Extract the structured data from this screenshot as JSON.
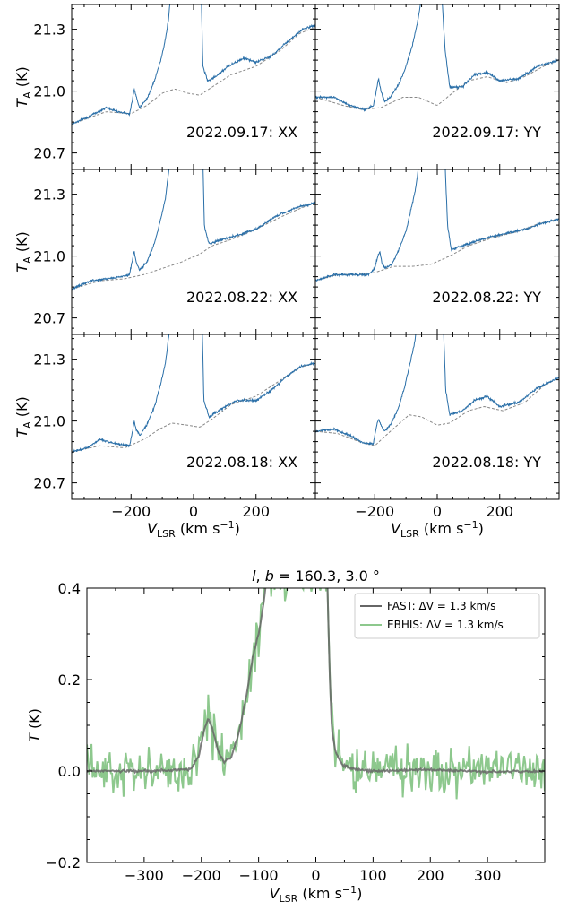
{
  "chart_data": [
    {
      "type": "line",
      "panel": "grid-2022.09.17-XX",
      "label": "2022.09.17: XX",
      "ylabel": "T_A (K)",
      "xlim": [
        -390,
        390
      ],
      "ylim": [
        20.62,
        21.42
      ],
      "yticks": [
        20.7,
        21.0,
        21.3
      ],
      "baseline": [
        [
          -390,
          20.84
        ],
        [
          -280,
          20.9
        ],
        [
          -200,
          20.89
        ],
        [
          -150,
          20.93
        ],
        [
          -100,
          20.99
        ],
        [
          -60,
          21.01
        ],
        [
          -20,
          20.99
        ],
        [
          20,
          20.98
        ],
        [
          60,
          21.02
        ],
        [
          120,
          21.08
        ],
        [
          200,
          21.12
        ],
        [
          280,
          21.2
        ],
        [
          340,
          21.28
        ],
        [
          390,
          21.31
        ]
      ],
      "spectrum": [
        [
          -390,
          20.84
        ],
        [
          -330,
          20.88
        ],
        [
          -280,
          20.92
        ],
        [
          -240,
          20.9
        ],
        [
          -205,
          20.89
        ],
        [
          -195,
          20.96
        ],
        [
          -190,
          21.01
        ],
        [
          -183,
          20.97
        ],
        [
          -172,
          20.92
        ],
        [
          -150,
          20.96
        ],
        [
          -125,
          21.05
        ],
        [
          -105,
          21.15
        ],
        [
          -90,
          21.25
        ],
        [
          -80,
          21.35
        ],
        [
          -74,
          21.45
        ],
        [
          25,
          21.45
        ],
        [
          30,
          21.12
        ],
        [
          45,
          21.05
        ],
        [
          70,
          21.07
        ],
        [
          110,
          21.12
        ],
        [
          160,
          21.16
        ],
        [
          200,
          21.14
        ],
        [
          250,
          21.17
        ],
        [
          300,
          21.24
        ],
        [
          350,
          21.3
        ],
        [
          390,
          21.32
        ]
      ]
    },
    {
      "type": "line",
      "panel": "grid-2022.09.17-YY",
      "label": "2022.09.17: YY",
      "xlim": [
        -390,
        390
      ],
      "ylim": [
        20.62,
        21.42
      ],
      "baseline": [
        [
          -390,
          20.97
        ],
        [
          -300,
          20.93
        ],
        [
          -240,
          20.91
        ],
        [
          -180,
          20.92
        ],
        [
          -110,
          20.97
        ],
        [
          -60,
          20.97
        ],
        [
          0,
          20.93
        ],
        [
          40,
          20.98
        ],
        [
          100,
          21.05
        ],
        [
          160,
          21.07
        ],
        [
          220,
          21.04
        ],
        [
          280,
          21.07
        ],
        [
          340,
          21.12
        ],
        [
          390,
          21.15
        ]
      ],
      "spectrum": [
        [
          -390,
          20.97
        ],
        [
          -330,
          20.97
        ],
        [
          -280,
          20.93
        ],
        [
          -230,
          20.91
        ],
        [
          -205,
          20.93
        ],
        [
          -195,
          21.0
        ],
        [
          -188,
          21.06
        ],
        [
          -180,
          21.0
        ],
        [
          -168,
          20.95
        ],
        [
          -150,
          20.97
        ],
        [
          -120,
          21.04
        ],
        [
          -100,
          21.12
        ],
        [
          -80,
          21.22
        ],
        [
          -65,
          21.32
        ],
        [
          -50,
          21.45
        ],
        [
          15,
          21.45
        ],
        [
          25,
          21.2
        ],
        [
          40,
          21.02
        ],
        [
          80,
          21.02
        ],
        [
          120,
          21.08
        ],
        [
          160,
          21.09
        ],
        [
          200,
          21.05
        ],
        [
          260,
          21.06
        ],
        [
          320,
          21.12
        ],
        [
          390,
          21.15
        ]
      ]
    },
    {
      "type": "line",
      "panel": "grid-2022.08.22-XX",
      "label": "2022.08.22: XX",
      "ylabel": "T_A (K)",
      "xlim": [
        -390,
        390
      ],
      "ylim": [
        20.62,
        21.42
      ],
      "yticks": [
        20.7,
        21.0,
        21.3
      ],
      "baseline": [
        [
          -390,
          20.84
        ],
        [
          -300,
          20.88
        ],
        [
          -220,
          20.89
        ],
        [
          -160,
          20.91
        ],
        [
          -100,
          20.94
        ],
        [
          -40,
          20.97
        ],
        [
          20,
          21.01
        ],
        [
          60,
          21.05
        ],
        [
          120,
          21.08
        ],
        [
          200,
          21.13
        ],
        [
          280,
          21.19
        ],
        [
          340,
          21.23
        ],
        [
          390,
          21.26
        ]
      ],
      "spectrum": [
        [
          -390,
          20.84
        ],
        [
          -330,
          20.88
        ],
        [
          -280,
          20.89
        ],
        [
          -230,
          20.9
        ],
        [
          -205,
          20.91
        ],
        [
          -196,
          20.98
        ],
        [
          -190,
          21.02
        ],
        [
          -183,
          20.97
        ],
        [
          -172,
          20.93
        ],
        [
          -150,
          20.97
        ],
        [
          -125,
          21.06
        ],
        [
          -105,
          21.18
        ],
        [
          -90,
          21.28
        ],
        [
          -82,
          21.38
        ],
        [
          -76,
          21.45
        ],
        [
          30,
          21.45
        ],
        [
          35,
          21.14
        ],
        [
          50,
          21.06
        ],
        [
          90,
          21.08
        ],
        [
          140,
          21.1
        ],
        [
          200,
          21.13
        ],
        [
          260,
          21.19
        ],
        [
          320,
          21.23
        ],
        [
          390,
          21.26
        ]
      ]
    },
    {
      "type": "line",
      "panel": "grid-2022.08.22-YY",
      "label": "2022.08.22: YY",
      "xlim": [
        -390,
        390
      ],
      "ylim": [
        20.62,
        21.42
      ],
      "baseline": [
        [
          -390,
          20.88
        ],
        [
          -320,
          20.91
        ],
        [
          -260,
          20.91
        ],
        [
          -200,
          20.92
        ],
        [
          -140,
          20.95
        ],
        [
          -80,
          20.95
        ],
        [
          -20,
          20.96
        ],
        [
          40,
          21.0
        ],
        [
          100,
          21.05
        ],
        [
          180,
          21.09
        ],
        [
          260,
          21.12
        ],
        [
          330,
          21.16
        ],
        [
          390,
          21.18
        ]
      ],
      "spectrum": [
        [
          -390,
          20.88
        ],
        [
          -330,
          20.91
        ],
        [
          -270,
          20.91
        ],
        [
          -220,
          20.91
        ],
        [
          -200,
          20.94
        ],
        [
          -190,
          21.0
        ],
        [
          -183,
          21.02
        ],
        [
          -176,
          20.96
        ],
        [
          -165,
          20.94
        ],
        [
          -145,
          20.96
        ],
        [
          -120,
          21.04
        ],
        [
          -100,
          21.12
        ],
        [
          -85,
          21.22
        ],
        [
          -70,
          21.32
        ],
        [
          -58,
          21.45
        ],
        [
          25,
          21.45
        ],
        [
          33,
          21.15
        ],
        [
          45,
          21.03
        ],
        [
          100,
          21.06
        ],
        [
          160,
          21.09
        ],
        [
          220,
          21.11
        ],
        [
          280,
          21.13
        ],
        [
          340,
          21.16
        ],
        [
          390,
          21.18
        ]
      ]
    },
    {
      "type": "line",
      "panel": "grid-2022.08.18-XX",
      "label": "2022.08.18: XX",
      "ylabel": "T_A (K)",
      "xlim": [
        -390,
        390
      ],
      "ylim": [
        20.62,
        21.42
      ],
      "yticks": [
        20.7,
        21.0,
        21.3
      ],
      "baseline": [
        [
          -390,
          20.85
        ],
        [
          -300,
          20.88
        ],
        [
          -220,
          20.87
        ],
        [
          -160,
          20.91
        ],
        [
          -110,
          20.96
        ],
        [
          -70,
          20.99
        ],
        [
          -20,
          20.98
        ],
        [
          20,
          20.97
        ],
        [
          60,
          21.01
        ],
        [
          120,
          21.08
        ],
        [
          200,
          21.12
        ],
        [
          280,
          21.2
        ],
        [
          340,
          21.26
        ],
        [
          390,
          21.28
        ]
      ],
      "spectrum": [
        [
          -390,
          20.85
        ],
        [
          -340,
          20.87
        ],
        [
          -300,
          20.91
        ],
        [
          -250,
          20.89
        ],
        [
          -205,
          20.88
        ],
        [
          -195,
          20.95
        ],
        [
          -190,
          21.0
        ],
        [
          -184,
          20.96
        ],
        [
          -172,
          20.93
        ],
        [
          -150,
          20.98
        ],
        [
          -125,
          21.07
        ],
        [
          -105,
          21.18
        ],
        [
          -90,
          21.28
        ],
        [
          -82,
          21.38
        ],
        [
          -76,
          21.45
        ],
        [
          28,
          21.45
        ],
        [
          33,
          21.1
        ],
        [
          50,
          21.02
        ],
        [
          90,
          21.06
        ],
        [
          140,
          21.1
        ],
        [
          200,
          21.1
        ],
        [
          250,
          21.15
        ],
        [
          300,
          21.22
        ],
        [
          350,
          21.27
        ],
        [
          390,
          21.28
        ]
      ]
    },
    {
      "type": "line",
      "panel": "grid-2022.08.18-YY",
      "label": "2022.08.18: YY",
      "xlim": [
        -390,
        390
      ],
      "ylim": [
        20.62,
        21.42
      ],
      "baseline": [
        [
          -390,
          20.95
        ],
        [
          -320,
          20.94
        ],
        [
          -250,
          20.9
        ],
        [
          -200,
          20.88
        ],
        [
          -150,
          20.95
        ],
        [
          -90,
          21.03
        ],
        [
          -50,
          21.02
        ],
        [
          0,
          20.98
        ],
        [
          40,
          20.99
        ],
        [
          100,
          21.05
        ],
        [
          150,
          21.07
        ],
        [
          210,
          21.05
        ],
        [
          280,
          21.09
        ],
        [
          340,
          21.17
        ],
        [
          390,
          21.21
        ]
      ],
      "spectrum": [
        [
          -390,
          20.95
        ],
        [
          -330,
          20.96
        ],
        [
          -280,
          20.93
        ],
        [
          -230,
          20.89
        ],
        [
          -205,
          20.89
        ],
        [
          -196,
          20.96
        ],
        [
          -188,
          21.01
        ],
        [
          -180,
          20.98
        ],
        [
          -168,
          20.95
        ],
        [
          -150,
          20.98
        ],
        [
          -125,
          21.06
        ],
        [
          -105,
          21.16
        ],
        [
          -90,
          21.26
        ],
        [
          -75,
          21.36
        ],
        [
          -65,
          21.45
        ],
        [
          20,
          21.45
        ],
        [
          27,
          21.15
        ],
        [
          40,
          21.03
        ],
        [
          80,
          21.05
        ],
        [
          120,
          21.1
        ],
        [
          160,
          21.12
        ],
        [
          200,
          21.07
        ],
        [
          260,
          21.09
        ],
        [
          320,
          21.16
        ],
        [
          390,
          21.21
        ]
      ]
    },
    {
      "type": "line",
      "panel": "comparison",
      "title": "l, b = 160.3, 3.0 °",
      "xlabel": "V_LSR (km s^-1)",
      "ylabel": "T (K)",
      "xlim": [
        -400,
        400
      ],
      "ylim": [
        -0.2,
        0.4
      ],
      "xticks": [
        -300,
        -200,
        -100,
        0,
        100,
        200,
        300
      ],
      "yticks": [
        -0.2,
        0.0,
        0.2,
        0.4
      ],
      "legend": "top-right",
      "series": [
        {
          "name": "FAST: ΔV = 1.3 km/s",
          "color": "#666666",
          "points": [
            [
              -400,
              0.0
            ],
            [
              -300,
              0.0
            ],
            [
              -220,
              0.003
            ],
            [
              -205,
              0.03
            ],
            [
              -195,
              0.09
            ],
            [
              -188,
              0.115
            ],
            [
              -180,
              0.09
            ],
            [
              -170,
              0.04
            ],
            [
              -160,
              0.02
            ],
            [
              -148,
              0.03
            ],
            [
              -135,
              0.08
            ],
            [
              -122,
              0.16
            ],
            [
              -110,
              0.25
            ],
            [
              -100,
              0.3
            ],
            [
              -92,
              0.36
            ],
            [
              -86,
              0.42
            ],
            [
              20,
              0.42
            ],
            [
              24,
              0.22
            ],
            [
              28,
              0.09
            ],
            [
              35,
              0.04
            ],
            [
              45,
              0.015
            ],
            [
              60,
              0.005
            ],
            [
              100,
              0.0
            ],
            [
              200,
              0.003
            ],
            [
              300,
              -0.002
            ],
            [
              400,
              0.0
            ]
          ]
        },
        {
          "name": "EBHIS: ΔV = 1.3 km/s",
          "color": "#8dc88d",
          "points": [
            [
              -400,
              0.0
            ],
            [
              -220,
              0.0
            ],
            [
              -200,
              0.07
            ],
            [
              -188,
              0.11
            ],
            [
              -175,
              0.06
            ],
            [
              -160,
              0.02
            ],
            [
              -140,
              0.05
            ],
            [
              -125,
              0.15
            ],
            [
              -110,
              0.24
            ],
            [
              -98,
              0.32
            ],
            [
              -88,
              0.42
            ],
            [
              20,
              0.42
            ],
            [
              25,
              0.2
            ],
            [
              32,
              0.06
            ],
            [
              45,
              0.01
            ],
            [
              100,
              0.0
            ],
            [
              400,
              0.0
            ]
          ]
        }
      ]
    }
  ]
}
